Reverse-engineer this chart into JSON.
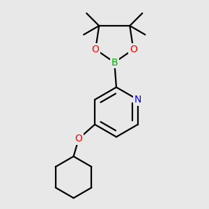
{
  "background_color": "#e8e8e8",
  "bond_color": "#000000",
  "atom_colors": {
    "B": "#00b300",
    "O": "#ff0000",
    "N": "#0000ff",
    "C": "#000000"
  },
  "line_width": 1.6,
  "fig_size": [
    3.0,
    3.0
  ],
  "dpi": 100
}
